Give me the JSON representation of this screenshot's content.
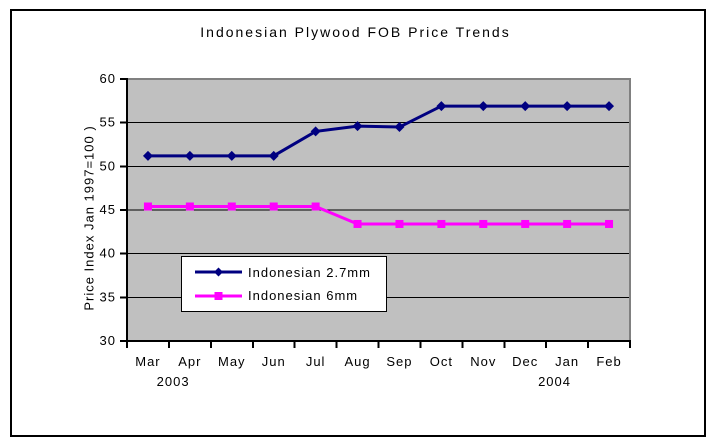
{
  "frame": {
    "background": "#ffffff",
    "border_color": "#000000"
  },
  "chart_data": {
    "type": "line",
    "title": "Indonesian Plywood FOB Price Trends",
    "ylabel": "Price Index Jan 1997=100 )",
    "categories": [
      "Mar",
      "Apr",
      "May",
      "Jun",
      "Jul",
      "Aug",
      "Sep",
      "Oct",
      "Nov",
      "Dec",
      "Jan",
      "Feb"
    ],
    "year_labels": [
      {
        "text": "2003",
        "cat_pos": 1.1
      },
      {
        "text": "2004",
        "cat_pos": 10.2
      }
    ],
    "ylim": [
      30,
      60
    ],
    "ytick_step": 5,
    "yticks": [
      30,
      35,
      40,
      45,
      50,
      55,
      60
    ],
    "grid": true,
    "legend_position": "inside-lower-left",
    "colors": {
      "plot_bg": "#c0c0c0",
      "plot_border": "#808080",
      "gridline": "#000000",
      "axis": "#000000",
      "text": "#000000",
      "legend_bg": "#ffffff",
      "legend_border": "#000000"
    },
    "series": [
      {
        "name": "Indonesian 2.7mm",
        "color": "#000080",
        "marker": "diamond",
        "values": [
          51.2,
          51.2,
          51.2,
          51.2,
          54.0,
          54.6,
          54.5,
          56.9,
          56.9,
          56.9,
          56.9,
          56.9
        ]
      },
      {
        "name": "Indonesian 6mm",
        "color": "#ff00ff",
        "marker": "square",
        "values": [
          45.4,
          45.4,
          45.4,
          45.4,
          45.4,
          43.4,
          43.4,
          43.4,
          43.4,
          43.4,
          43.4,
          43.4
        ]
      }
    ]
  }
}
